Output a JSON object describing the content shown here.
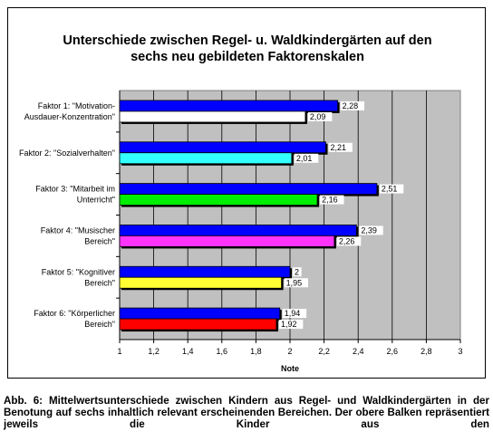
{
  "chart_data": {
    "type": "bar",
    "orientation": "horizontal",
    "title": "Unterschiede zwischen Regel- u. Waldkindergärten auf den\nsechs neu gebildeten Faktorenskalen",
    "xlabel": "Note",
    "xlim": [
      1,
      3
    ],
    "xticks": [
      "1",
      "1,2",
      "1,4",
      "1,6",
      "1,8",
      "2",
      "2,2",
      "2,4",
      "2,6",
      "2,8",
      "3"
    ],
    "grid": true,
    "categories": [
      "Faktor 1: \"Motivation-\nAusdauer-Konzentration\"",
      "Faktor 2: \"Sozialverhalten\"",
      "Faktor 3: \"Mitarbeit im\nUnterricht\"",
      "Faktor 4: \"Musischer\nBereich\"",
      "Faktor 5: \"Kognitiver\nBereich\"",
      "Faktor 6: \"Körperlicher\nBereich\""
    ],
    "series": [
      {
        "values": [
          2.28,
          2.21,
          2.51,
          2.39,
          2.0,
          1.94
        ],
        "labels": [
          "2,28",
          "2,21",
          "2,51",
          "2,39",
          "2",
          "1,94"
        ],
        "colors": [
          "#0000ff",
          "#0000ff",
          "#0000ff",
          "#0000ff",
          "#0000ff",
          "#0000ff"
        ]
      },
      {
        "values": [
          2.09,
          2.01,
          2.16,
          2.26,
          1.95,
          1.92
        ],
        "labels": [
          "2,09",
          "2,01",
          "2,16",
          "2,26",
          "1,95",
          "1,92"
        ],
        "colors": [
          "#ffffff",
          "#33ffff",
          "#00ee00",
          "#ff33ff",
          "#ffff33",
          "#ff0000"
        ]
      }
    ],
    "plot_background": "#c0c0c0"
  },
  "caption": "Abb. 6: Mittelwertsunterschiede zwischen Kindern aus Regel- und Waldkindergärten in der Benotung auf sechs inhaltlich relevant erscheinenden Bereichen. Der obere Balken repräsentiert jeweils die Kinder aus den"
}
